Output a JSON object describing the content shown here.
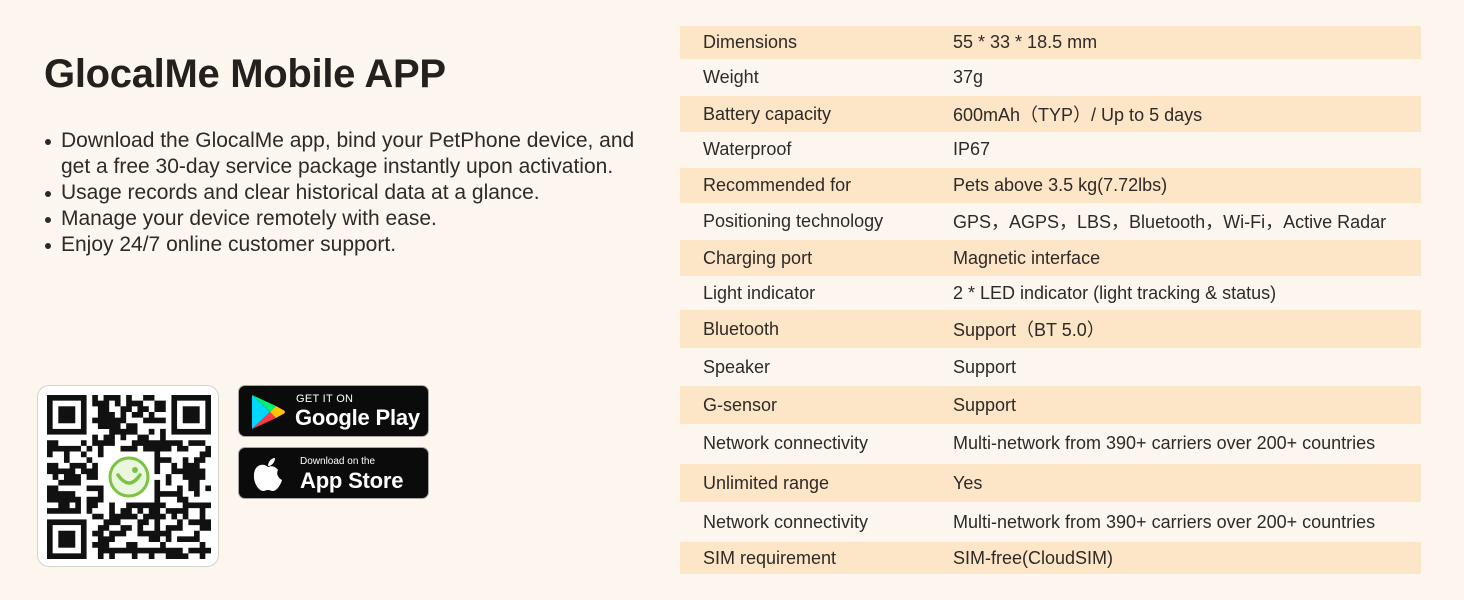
{
  "app_section": {
    "title": "GlocalMe Mobile APP",
    "features": [
      "Download the GlocalMe app, bind your PetPhone device, and get a free 30-day service package instantly upon activation.",
      "Usage records and clear historical data at a glance.",
      "Manage your device remotely with ease.",
      "Enjoy 24/7 online customer support."
    ],
    "qr_code": {
      "icon": "qr-code",
      "center_logo": "glocalme-logo-icon"
    },
    "google_play": {
      "small": "GET IT ON",
      "big": "Google Play",
      "icon": "google-play-icon"
    },
    "app_store": {
      "small": "Download on the",
      "big": "App Store",
      "icon": "apple-icon"
    }
  },
  "specs": [
    {
      "label": "Dimensions",
      "value": "55 * 33 * 18.5 mm"
    },
    {
      "label": "Weight",
      "value": "37g"
    },
    {
      "label": "Battery capacity",
      "value": "600mAh（TYP）/ Up to  5 days"
    },
    {
      "label": "Waterproof",
      "value": "IP67"
    },
    {
      "label": "Recommended for",
      "value": "Pets above 3.5 kg(7.72lbs)"
    },
    {
      "label": "Positioning technology",
      "value": "GPS，AGPS，LBS，Bluetooth，Wi-Fi，Active Radar"
    },
    {
      "label": "Charging port",
      "value": "Magnetic interface"
    },
    {
      "label": "Light indicator",
      "value": "2 * LED indicator (light tracking & status)"
    },
    {
      "label": "Bluetooth",
      "value": "Support（BT 5.0）"
    },
    {
      "label": "Speaker",
      "value": "Support"
    },
    {
      "label": "G-sensor",
      "value": "Support"
    },
    {
      "label": "Network connectivity",
      "value": "Multi-network from 390+ carriers over 200+ countries"
    },
    {
      "label": "Unlimited range",
      "value": "Yes"
    },
    {
      "label": "Network connectivity",
      "value": "Multi-network from 390+ carriers over 200+ countries"
    },
    {
      "label": "SIM requirement",
      "value": "SIM-free(CloudSIM)"
    }
  ],
  "colors": {
    "background": "#fdf6ef",
    "row_shade": "#fde5c8",
    "text": "#2e2a26",
    "logo_green": "#7cc243"
  }
}
